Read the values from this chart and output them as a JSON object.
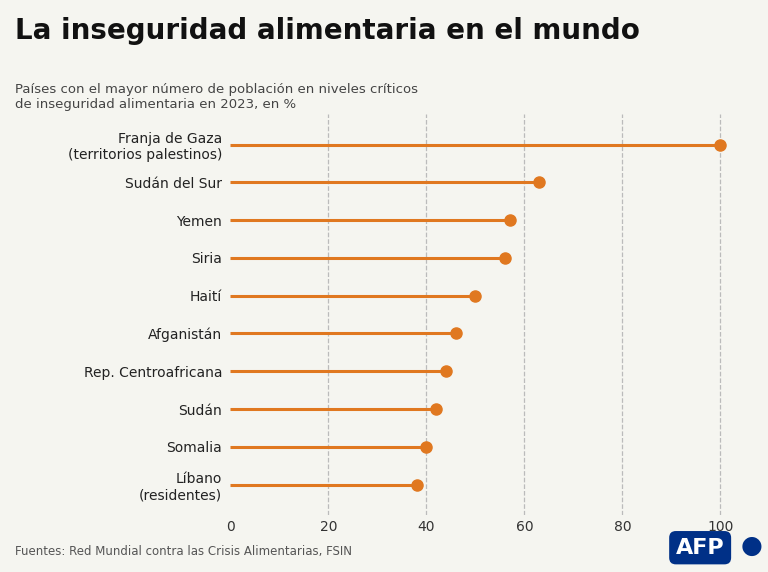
{
  "title": "La inseguridad alimentaria en el mundo",
  "subtitle": "Países con el mayor número de población en niveles críticos\nde inseguridad alimentaria en 2023, en %",
  "categories": [
    "Franja de Gaza\n(territorios palestinos)",
    "Sudán del Sur",
    "Yemen",
    "Siria",
    "Haití",
    "Afganistán",
    "Rep. Centroafricana",
    "Sudán",
    "Somalia",
    "Líbano\n(residentes)"
  ],
  "values": [
    100,
    63,
    57,
    56,
    50,
    46,
    44,
    42,
    40,
    38
  ],
  "bar_color": "#E07820",
  "dot_color": "#E07820",
  "background_color": "#f5f5f0",
  "title_color": "#111111",
  "subtitle_color": "#444444",
  "source_text": "Fuentes: Red Mundial contra las Crisis Alimentarias, FSIN",
  "xlabel": "",
  "xlim": [
    0,
    105
  ],
  "xticks": [
    0,
    20,
    40,
    60,
    80,
    100
  ],
  "grid_color": "#bbbbbb",
  "afp_text": "AFP",
  "afp_dot_color": "#003087"
}
